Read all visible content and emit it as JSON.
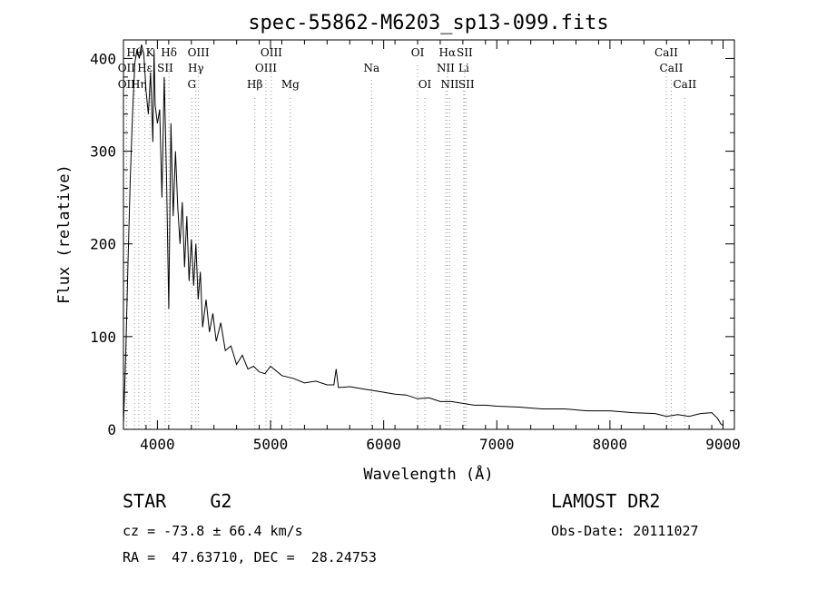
{
  "chart_data": {
    "type": "line",
    "title": "spec-55862-M6203_sp13-099.fits",
    "xlabel": "Wavelength (Å)",
    "ylabel": "Flux (relative)",
    "xlim": [
      3700,
      9100
    ],
    "ylim": [
      0,
      420
    ],
    "xticks": [
      4000,
      5000,
      6000,
      7000,
      8000,
      9000
    ],
    "yticks": [
      0,
      100,
      200,
      300,
      400
    ],
    "grid": false,
    "series": [
      {
        "x": [
          3700,
          3720,
          3740,
          3760,
          3780,
          3800,
          3820,
          3840,
          3860,
          3880,
          3900,
          3920,
          3940,
          3960,
          3970,
          3980,
          4000,
          4020,
          4040,
          4060,
          4080,
          4100,
          4120,
          4140,
          4160,
          4180,
          4200,
          4220,
          4240,
          4260,
          4280,
          4300,
          4320,
          4340,
          4360,
          4380,
          4400,
          4430,
          4460,
          4490,
          4520,
          4560,
          4600,
          4650,
          4700,
          4750,
          4800,
          4850,
          4900,
          4950,
          5000,
          5100,
          5200,
          5300,
          5400,
          5500,
          5560,
          5580,
          5600,
          5700,
          5800,
          5900,
          6000,
          6100,
          6200,
          6300,
          6400,
          6500,
          6600,
          6700,
          6800,
          6900,
          7000,
          7200,
          7400,
          7600,
          7800,
          8000,
          8200,
          8400,
          8500,
          8600,
          8700,
          8800,
          8900,
          8950,
          8980,
          9000
        ],
        "y": [
          5,
          80,
          180,
          270,
          340,
          395,
          410,
          400,
          415,
          405,
          365,
          340,
          385,
          310,
          410,
          350,
          330,
          345,
          250,
          380,
          275,
          130,
          330,
          230,
          300,
          240,
          200,
          245,
          175,
          230,
          160,
          205,
          155,
          200,
          140,
          170,
          110,
          140,
          105,
          125,
          95,
          115,
          85,
          90,
          70,
          80,
          65,
          68,
          62,
          60,
          68,
          58,
          55,
          50,
          52,
          48,
          48,
          65,
          45,
          46,
          44,
          42,
          40,
          38,
          37,
          33,
          34,
          30,
          30,
          28,
          26,
          26,
          25,
          24,
          22,
          22,
          20,
          20,
          18,
          17,
          14,
          16,
          14,
          17,
          18,
          12,
          6,
          4
        ]
      }
    ],
    "lines": [
      {
        "label": "Hθ",
        "x": 3798,
        "row": 0
      },
      {
        "label": "OII",
        "x": 3727,
        "row": 1
      },
      {
        "label": "OII",
        "x": 3727,
        "row": 2
      },
      {
        "label": "Hη",
        "x": 3835,
        "row": 2
      },
      {
        "label": "K",
        "x": 3934,
        "row": 0
      },
      {
        "label": "Hε",
        "x": 3889,
        "row": 1
      },
      {
        "label": "SII",
        "x": 4069,
        "row": 1
      },
      {
        "label": "Hδ",
        "x": 4102,
        "row": 0
      },
      {
        "label": "OIII",
        "x": 4363,
        "row": 0
      },
      {
        "label": "Hγ",
        "x": 4340,
        "row": 1
      },
      {
        "label": "G",
        "x": 4304,
        "row": 2
      },
      {
        "label": "OIII",
        "x": 5007,
        "row": 0
      },
      {
        "label": "OIII",
        "x": 4959,
        "row": 1
      },
      {
        "label": "Hβ",
        "x": 4861,
        "row": 2
      },
      {
        "label": "Mg",
        "x": 5175,
        "row": 2
      },
      {
        "label": "Na",
        "x": 5893,
        "row": 1
      },
      {
        "label": "OI",
        "x": 6300,
        "row": 0
      },
      {
        "label": "OI",
        "x": 6364,
        "row": 2
      },
      {
        "label": "Hα",
        "x": 6563,
        "row": 0
      },
      {
        "label": "SII",
        "x": 6716,
        "row": 0
      },
      {
        "label": "NII",
        "x": 6548,
        "row": 1
      },
      {
        "label": "Li",
        "x": 6708,
        "row": 1
      },
      {
        "label": "NII",
        "x": 6584,
        "row": 2
      },
      {
        "label": "SII",
        "x": 6731,
        "row": 2
      },
      {
        "label": "CaII",
        "x": 8498,
        "row": 0
      },
      {
        "label": "CaII",
        "x": 8542,
        "row": 1
      },
      {
        "label": "CaII",
        "x": 8662,
        "row": 2
      }
    ]
  },
  "info": {
    "class": "STAR    G2",
    "survey": "LAMOST DR2",
    "cz": "cz = -73.8 ± 66.4 km/s",
    "obs_date": "Obs-Date: 20111027",
    "radec": "RA =  47.63710, DEC =  28.24753"
  }
}
